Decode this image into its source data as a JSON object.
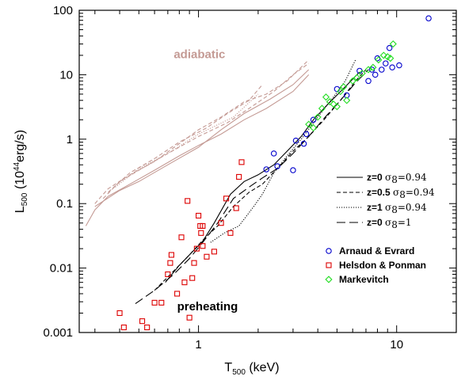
{
  "chart_data": {
    "type": "scatter",
    "xscale": "log",
    "yscale": "log",
    "xlim": [
      0.25,
      20
    ],
    "ylim": [
      0.001,
      100
    ],
    "x_ticks": [
      {
        "value": 1,
        "label": "1"
      },
      {
        "value": 10,
        "label": "10"
      }
    ],
    "y_ticks": [
      {
        "value": 0.001,
        "label": "0.001"
      },
      {
        "value": 0.01,
        "label": "0.01"
      },
      {
        "value": 0.1,
        "label": "0.1"
      },
      {
        "value": 1,
        "label": "1"
      },
      {
        "value": 10,
        "label": "10"
      },
      {
        "value": 100,
        "label": "100"
      }
    ],
    "xlabel": {
      "main": "T",
      "sub": "500",
      "tail": " (keV)"
    },
    "ylabel": {
      "main": "L",
      "sub": "500",
      "mid": " (10",
      "sup": "44",
      "tail": "erg/s)"
    },
    "annotations": [
      {
        "text": "adiabatic",
        "x": 0.75,
        "y": 18,
        "color": "#c49a94"
      },
      {
        "text": "preheating",
        "x": 0.78,
        "y": 0.0022,
        "color": "#000000"
      }
    ],
    "legend": {
      "placement": "right",
      "lines": [
        {
          "label": "z=0",
          "sigma": "σ",
          "sigma_sub": "8",
          "value": "=0.94",
          "dash": "solid"
        },
        {
          "label": "z=0.5",
          "sigma": "σ",
          "sigma_sub": "8",
          "value": "=0.94",
          "dash": "dashed"
        },
        {
          "label": "z=1",
          "sigma": "σ",
          "sigma_sub": "8",
          "value": "=0.94",
          "dash": "dotted"
        },
        {
          "label": "z=0",
          "sigma": "σ",
          "sigma_sub": "8",
          "value": "=1",
          "dash": "longdash"
        }
      ],
      "markers": [
        {
          "label": "Arnaud & Evrard",
          "marker": "circle",
          "color": "#0000cc"
        },
        {
          "label": "Helsdon & Ponman",
          "marker": "square",
          "color": "#dd0000"
        },
        {
          "label": "Markevitch",
          "marker": "diamond",
          "color": "#22dd22"
        }
      ]
    },
    "adiabatic_lines": {
      "color": "#c49a94",
      "series": [
        {
          "dash": "solid",
          "points": [
            [
              0.27,
              0.045
            ],
            [
              0.3,
              0.08
            ],
            [
              0.35,
              0.13
            ],
            [
              0.45,
              0.2
            ],
            [
              0.6,
              0.33
            ],
            [
              0.8,
              0.55
            ],
            [
              1.0,
              0.8
            ],
            [
              1.3,
              1.2
            ],
            [
              1.7,
              2.0
            ],
            [
              2.2,
              3.0
            ],
            [
              3.0,
              5.5
            ],
            [
              3.6,
              10
            ]
          ]
        },
        {
          "dash": "solid",
          "points": [
            [
              0.3,
              0.09
            ],
            [
              0.4,
              0.16
            ],
            [
              0.5,
              0.22
            ],
            [
              0.7,
              0.4
            ],
            [
              1.0,
              0.75
            ],
            [
              1.3,
              1.4
            ],
            [
              1.7,
              2.5
            ],
            [
              2.3,
              4.2
            ],
            [
              3.0,
              7
            ],
            [
              3.6,
              12
            ]
          ]
        },
        {
          "dash": "dashed",
          "points": [
            [
              0.3,
              0.1
            ],
            [
              0.35,
              0.17
            ],
            [
              0.45,
              0.28
            ],
            [
              0.6,
              0.45
            ],
            [
              0.8,
              0.85
            ],
            [
              1.0,
              1.4
            ],
            [
              1.3,
              2.2
            ],
            [
              1.7,
              3.8
            ],
            [
              2.2,
              5
            ],
            [
              2.8,
              8
            ],
            [
              3.6,
              17
            ]
          ]
        },
        {
          "dash": "dashed",
          "points": [
            [
              0.33,
              0.12
            ],
            [
              0.4,
              0.22
            ],
            [
              0.5,
              0.33
            ],
            [
              0.7,
              0.6
            ],
            [
              1.0,
              1.1
            ],
            [
              1.4,
              1.8
            ],
            [
              1.8,
              3.0
            ],
            [
              2.4,
              5.5
            ],
            [
              3.0,
              10
            ],
            [
              3.6,
              15
            ]
          ]
        },
        {
          "dash": "dashed",
          "points": [
            [
              0.35,
              0.15
            ],
            [
              0.45,
              0.3
            ],
            [
              0.6,
              0.5
            ],
            [
              0.8,
              0.9
            ],
            [
              1.1,
              1.5
            ],
            [
              1.4,
              2.5
            ],
            [
              1.8,
              4.0
            ],
            [
              2.1,
              7
            ]
          ]
        },
        {
          "dash": "dotted",
          "points": [
            [
              0.38,
              0.18
            ],
            [
              0.5,
              0.35
            ],
            [
              0.7,
              0.6
            ],
            [
              1.0,
              1.2
            ],
            [
              1.5,
              2.2
            ],
            [
              2.0,
              5.0
            ]
          ]
        }
      ]
    },
    "preheating_lines": {
      "color": "#000000",
      "series": [
        {
          "dash": "solid",
          "points": [
            [
              0.68,
              0.006
            ],
            [
              0.8,
              0.011
            ],
            [
              0.95,
              0.019
            ],
            [
              1.05,
              0.026
            ],
            [
              1.2,
              0.05
            ],
            [
              1.45,
              0.14
            ],
            [
              1.7,
              0.22
            ],
            [
              2.0,
              0.28
            ],
            [
              2.4,
              0.4
            ],
            [
              2.8,
              0.65
            ],
            [
              3.3,
              1.1
            ],
            [
              3.8,
              2.0
            ],
            [
              4.5,
              3.5
            ],
            [
              5.5,
              6.5
            ],
            [
              6.5,
              11
            ]
          ]
        },
        {
          "dash": "dashed",
          "points": [
            [
              0.6,
              0.0045
            ],
            [
              0.75,
              0.009
            ],
            [
              0.9,
              0.016
            ],
            [
              1.05,
              0.027
            ],
            [
              1.25,
              0.045
            ],
            [
              1.5,
              0.09
            ],
            [
              1.8,
              0.15
            ],
            [
              2.1,
              0.2
            ],
            [
              2.5,
              0.35
            ],
            [
              3.0,
              0.65
            ],
            [
              3.6,
              1.1
            ],
            [
              4.3,
              2.0
            ],
            [
              5.2,
              4.0
            ],
            [
              6.2,
              8
            ],
            [
              7.0,
              12
            ]
          ]
        },
        {
          "dash": "dotted",
          "points": [
            [
              1.15,
              0.025
            ],
            [
              1.35,
              0.035
            ],
            [
              1.6,
              0.045
            ],
            [
              1.9,
              0.09
            ],
            [
              2.1,
              0.14
            ],
            [
              2.4,
              0.3
            ],
            [
              2.8,
              0.55
            ],
            [
              3.3,
              1.0
            ],
            [
              4.0,
              2.2
            ],
            [
              4.8,
              4.5
            ],
            [
              5.5,
              8
            ],
            [
              6.2,
              17
            ]
          ]
        },
        {
          "dash": "longdash",
          "points": [
            [
              0.48,
              0.0028
            ],
            [
              0.6,
              0.0045
            ],
            [
              0.75,
              0.008
            ],
            [
              0.9,
              0.014
            ],
            [
              1.05,
              0.025
            ],
            [
              1.25,
              0.05
            ],
            [
              1.5,
              0.12
            ],
            [
              1.8,
              0.18
            ],
            [
              2.1,
              0.25
            ],
            [
              2.5,
              0.35
            ],
            [
              3.0,
              0.6
            ],
            [
              3.6,
              1.1
            ],
            [
              4.3,
              2.1
            ],
            [
              5.2,
              4.0
            ],
            [
              6.2,
              7.5
            ],
            [
              7.2,
              12
            ]
          ]
        }
      ]
    },
    "series": [
      {
        "name": "Arnaud & Evrard",
        "marker": "circle",
        "color": "#0000cc",
        "points": [
          [
            2.2,
            0.34
          ],
          [
            2.4,
            0.6
          ],
          [
            2.5,
            0.38
          ],
          [
            3.0,
            0.33
          ],
          [
            3.1,
            0.95
          ],
          [
            3.4,
            0.85
          ],
          [
            3.5,
            1.2
          ],
          [
            3.8,
            2.0
          ],
          [
            5.0,
            6.0
          ],
          [
            5.6,
            4.8
          ],
          [
            6.5,
            11.5
          ],
          [
            7.2,
            8.0
          ],
          [
            7.5,
            12
          ],
          [
            7.8,
            10
          ],
          [
            8.0,
            18
          ],
          [
            8.4,
            12
          ],
          [
            8.8,
            15
          ],
          [
            9.2,
            26
          ],
          [
            9.5,
            13
          ],
          [
            10.3,
            14
          ],
          [
            14.5,
            75
          ]
        ]
      },
      {
        "name": "Helsdon & Ponman",
        "marker": "square",
        "color": "#dd0000",
        "points": [
          [
            0.4,
            0.002
          ],
          [
            0.42,
            0.0012
          ],
          [
            0.48,
            0.0009
          ],
          [
            0.52,
            0.0015
          ],
          [
            0.55,
            0.0012
          ],
          [
            0.6,
            0.0029
          ],
          [
            0.65,
            0.0029
          ],
          [
            0.7,
            0.008
          ],
          [
            0.72,
            0.012
          ],
          [
            0.73,
            0.016
          ],
          [
            0.78,
            0.004
          ],
          [
            0.82,
            0.03
          ],
          [
            0.85,
            0.006
          ],
          [
            0.88,
            0.11
          ],
          [
            0.9,
            0.0017
          ],
          [
            0.93,
            0.007
          ],
          [
            0.95,
            0.012
          ],
          [
            0.98,
            0.02
          ],
          [
            1.0,
            0.065
          ],
          [
            1.02,
            0.045
          ],
          [
            1.03,
            0.035
          ],
          [
            1.05,
            0.045
          ],
          [
            1.05,
            0.022
          ],
          [
            1.1,
            0.015
          ],
          [
            1.2,
            0.018
          ],
          [
            1.3,
            0.05
          ],
          [
            1.38,
            0.12
          ],
          [
            1.45,
            0.035
          ],
          [
            1.55,
            0.085
          ],
          [
            1.6,
            0.26
          ],
          [
            1.65,
            0.44
          ]
        ]
      },
      {
        "name": "Markevitch",
        "marker": "diamond",
        "color": "#22dd22",
        "points": [
          [
            3.6,
            1.7
          ],
          [
            3.8,
            1.5
          ],
          [
            4.0,
            2.2
          ],
          [
            4.2,
            3.0
          ],
          [
            4.4,
            4.5
          ],
          [
            4.6,
            3.8
          ],
          [
            4.8,
            3.5
          ],
          [
            5.0,
            3.2
          ],
          [
            5.2,
            5.5
          ],
          [
            5.4,
            6.5
          ],
          [
            5.6,
            4.0
          ],
          [
            6.0,
            8.0
          ],
          [
            6.3,
            9.0
          ],
          [
            6.7,
            10.5
          ],
          [
            7.2,
            12
          ],
          [
            7.6,
            13
          ],
          [
            8.1,
            17
          ],
          [
            8.6,
            20
          ],
          [
            9.0,
            19
          ],
          [
            9.3,
            18
          ],
          [
            9.6,
            30
          ]
        ]
      }
    ]
  }
}
